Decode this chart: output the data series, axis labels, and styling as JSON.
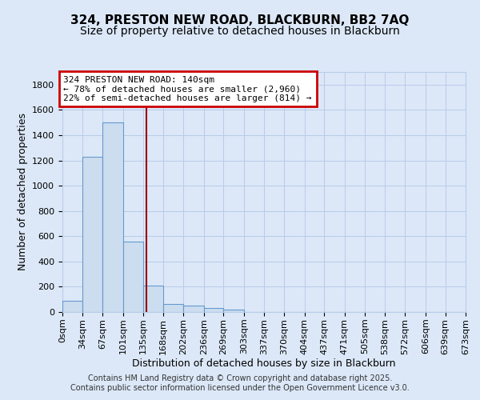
{
  "title": "324, PRESTON NEW ROAD, BLACKBURN, BB2 7AQ",
  "subtitle": "Size of property relative to detached houses in Blackburn",
  "xlabel": "Distribution of detached houses by size in Blackburn",
  "ylabel": "Number of detached properties",
  "bar_edges": [
    0,
    34,
    67,
    101,
    135,
    168,
    202,
    236,
    269,
    303,
    337,
    370,
    404,
    437,
    471,
    505,
    538,
    572,
    606,
    639,
    673
  ],
  "bar_heights": [
    90,
    1230,
    1500,
    560,
    210,
    65,
    48,
    30,
    20,
    0,
    0,
    0,
    0,
    0,
    0,
    0,
    0,
    0,
    0,
    0
  ],
  "bar_color": "#ccddf0",
  "bar_edgecolor": "#6699cc",
  "vline_x": 140,
  "vline_color": "#990000",
  "annotation_line1": "324 PRESTON NEW ROAD: 140sqm",
  "annotation_line2": "← 78% of detached houses are smaller (2,960)",
  "annotation_line3": "22% of semi-detached houses are larger (814) →",
  "annotation_box_edgecolor": "#cc0000",
  "annotation_box_facecolor": "#ffffff",
  "ylim": [
    0,
    1900
  ],
  "yticks": [
    0,
    200,
    400,
    600,
    800,
    1000,
    1200,
    1400,
    1600,
    1800
  ],
  "tick_labels": [
    "0sqm",
    "34sqm",
    "67sqm",
    "101sqm",
    "135sqm",
    "168sqm",
    "202sqm",
    "236sqm",
    "269sqm",
    "303sqm",
    "337sqm",
    "370sqm",
    "404sqm",
    "437sqm",
    "471sqm",
    "505sqm",
    "538sqm",
    "572sqm",
    "606sqm",
    "639sqm",
    "673sqm"
  ],
  "footer1": "Contains HM Land Registry data © Crown copyright and database right 2025.",
  "footer2": "Contains public sector information licensed under the Open Government Licence v3.0.",
  "background_color": "#dce8f8",
  "plot_background": "#dce8f8",
  "title_fontsize": 11,
  "subtitle_fontsize": 10,
  "axis_label_fontsize": 9,
  "tick_fontsize": 8,
  "footer_fontsize": 7,
  "grid_color": "#b8cce8"
}
